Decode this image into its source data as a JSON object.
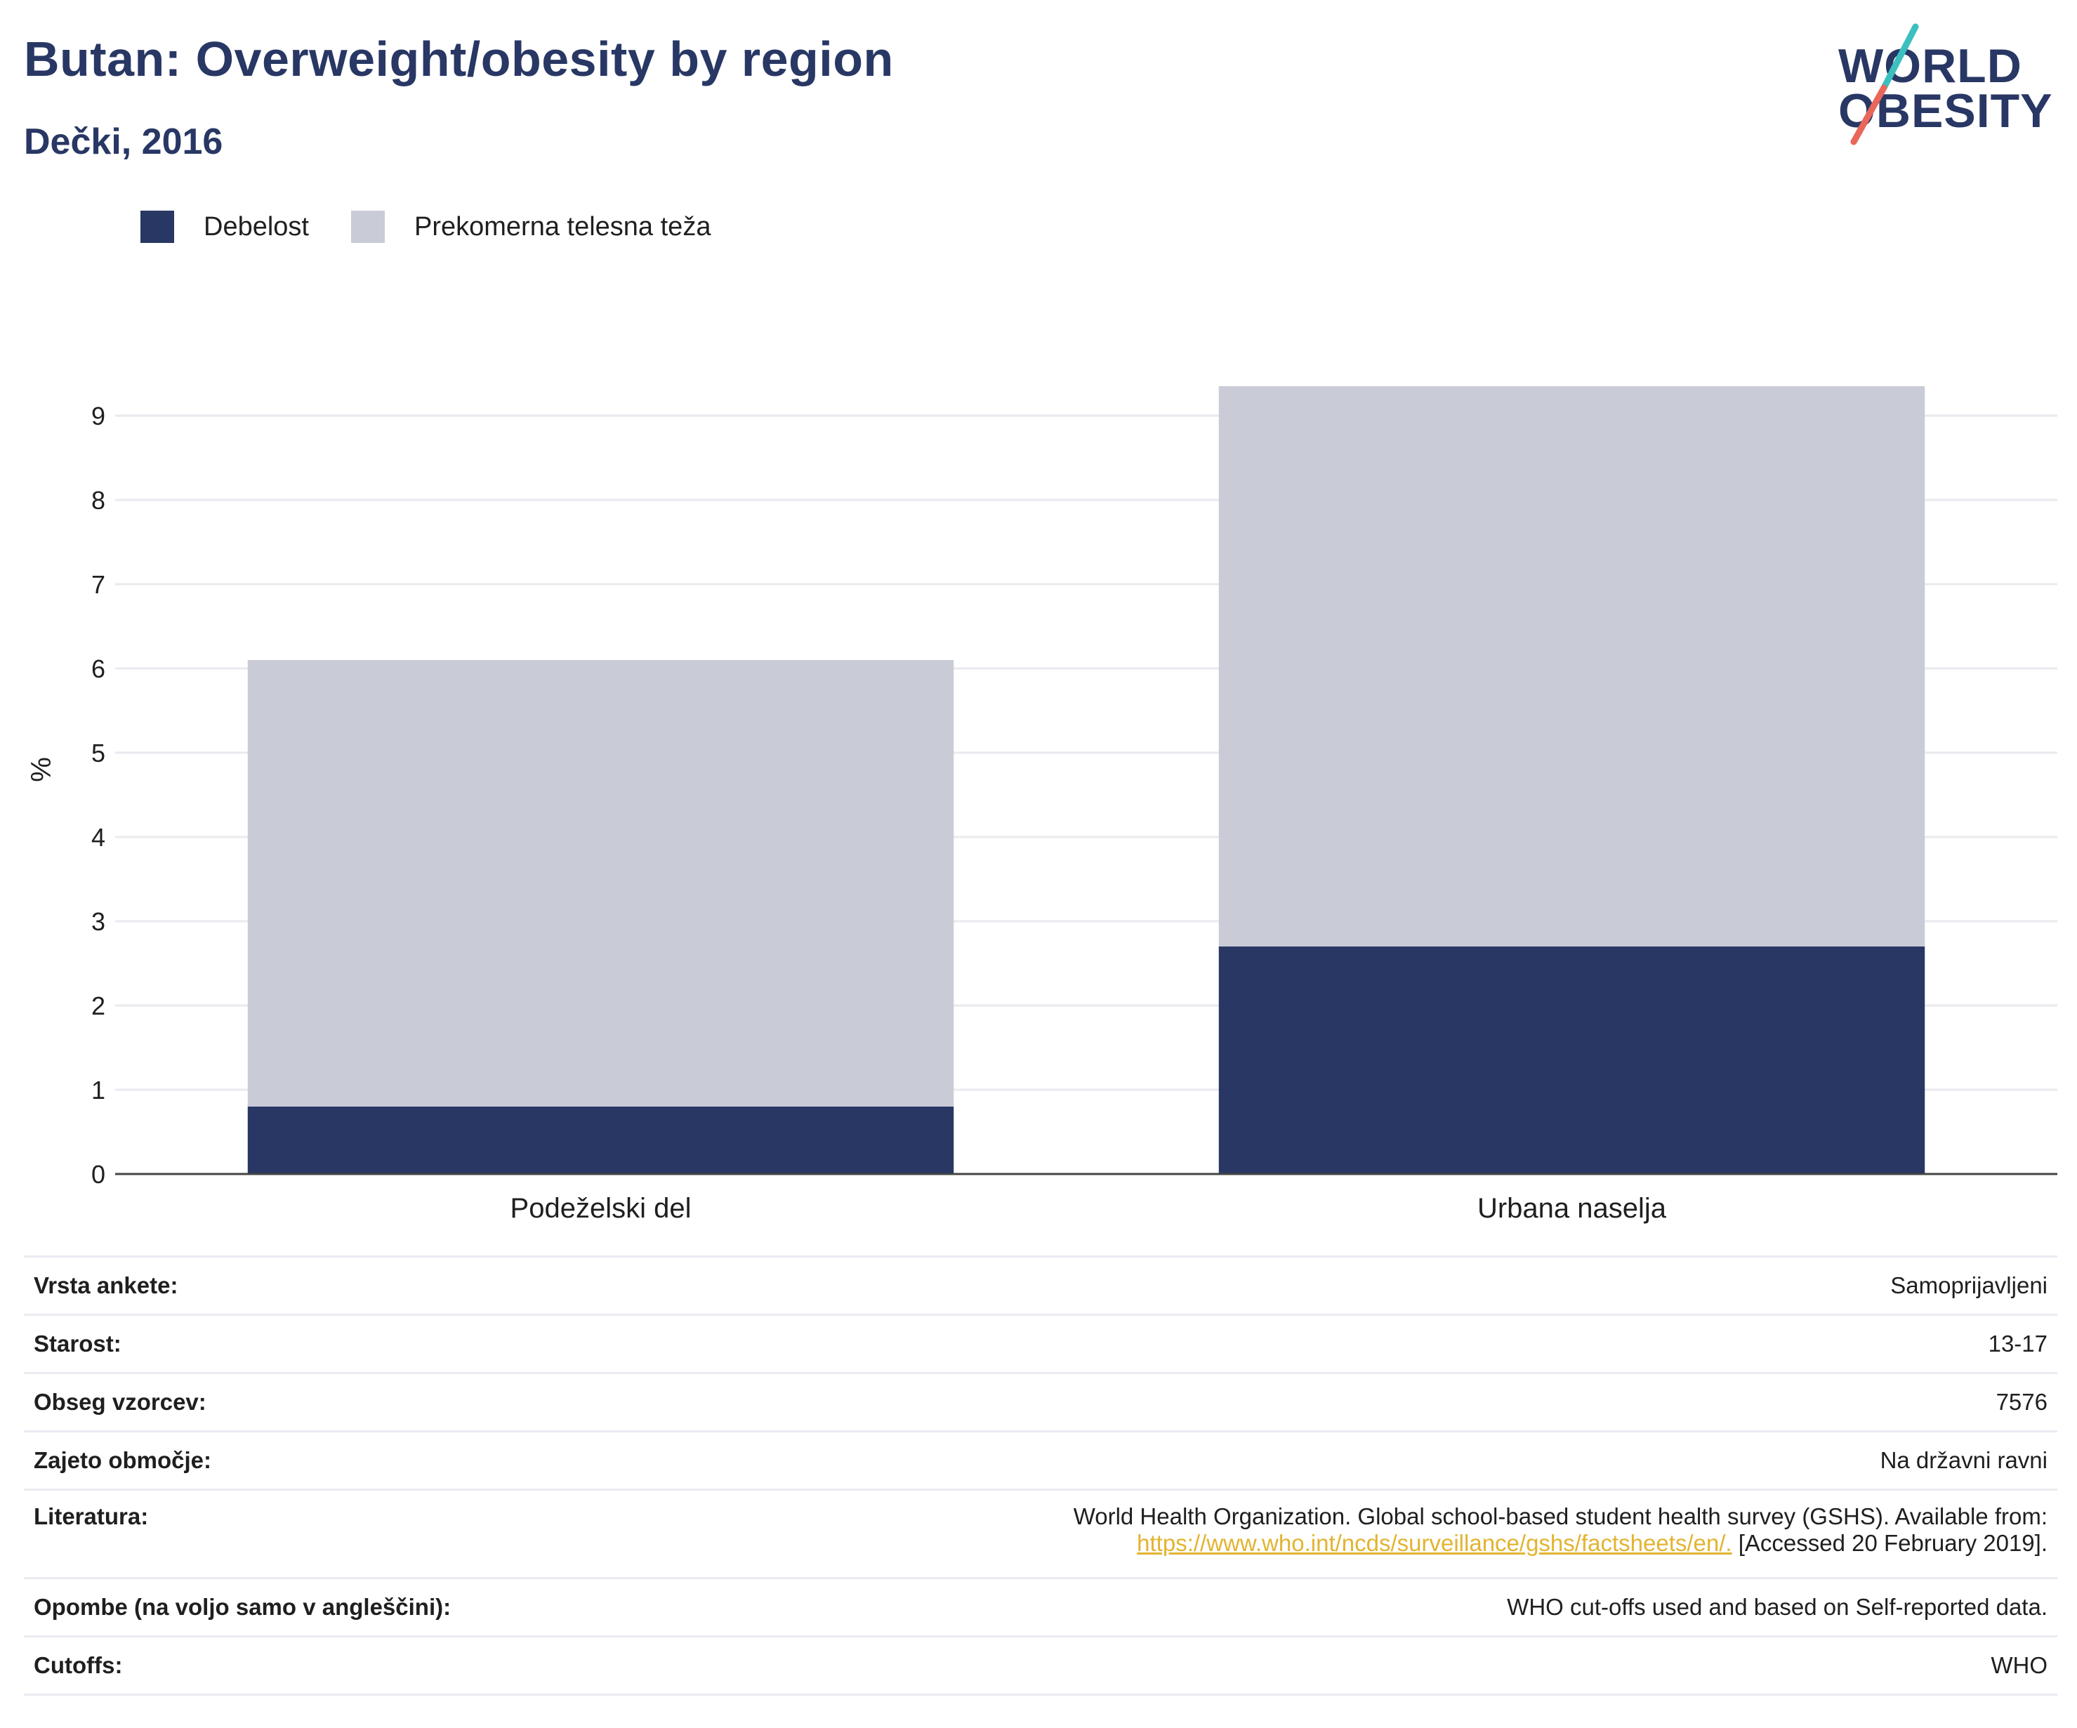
{
  "header": {
    "title": "Butan: Overweight/obesity by region",
    "subtitle": "Dečki, 2016"
  },
  "logo": {
    "line1": "WORLD",
    "line2": "OBESITY",
    "colors": {
      "text": "#283764",
      "slash_top": "#3cbfbf",
      "slash_bottom": "#e8675a"
    }
  },
  "legend": [
    {
      "label": "Debelost",
      "color": "#283764"
    },
    {
      "label": "Prekomerna telesna teža",
      "color": "#c9ccd7"
    }
  ],
  "chart_data": {
    "type": "bar",
    "stacked": true,
    "categories": [
      "Podeželski del",
      "Urbana naselja"
    ],
    "series": [
      {
        "name": "Debelost",
        "color": "#283764",
        "values": [
          0.8,
          2.7
        ]
      },
      {
        "name": "Prekomerna telesna teža",
        "color": "#c9ccd7",
        "values": [
          5.3,
          6.65
        ]
      }
    ],
    "totals": [
      6.1,
      9.35
    ],
    "ylabel": "%",
    "xlabel": "",
    "ylim": [
      0,
      9.6
    ],
    "yticks": [
      0,
      1,
      2,
      3,
      4,
      5,
      6,
      7,
      8,
      9
    ],
    "grid": true,
    "legend_position": "top-left"
  },
  "info": {
    "survey_type": {
      "label": "Vrsta ankete:",
      "value": "Samoprijavljeni"
    },
    "age": {
      "label": "Starost:",
      "value": "13-17"
    },
    "sample_size": {
      "label": "Obseg vzorcev:",
      "value": "7576"
    },
    "area": {
      "label": "Zajeto območje:",
      "value": "Na državni ravni"
    },
    "reference": {
      "label": "Literatura:",
      "text": "World Health Organization. Global school-based student health survey (GSHS). Available from:",
      "link": "https://www.who.int/ncds/surveillance/gshs/factsheets/en/.",
      "accessed": " [Accessed 20 February 2019]."
    },
    "notes": {
      "label": "Opombe (na voljo samo v angleščini):",
      "value": "WHO cut-offs used and based on Self-reported data."
    },
    "cutoffs": {
      "label": "Cutoffs:",
      "value": "WHO"
    }
  }
}
